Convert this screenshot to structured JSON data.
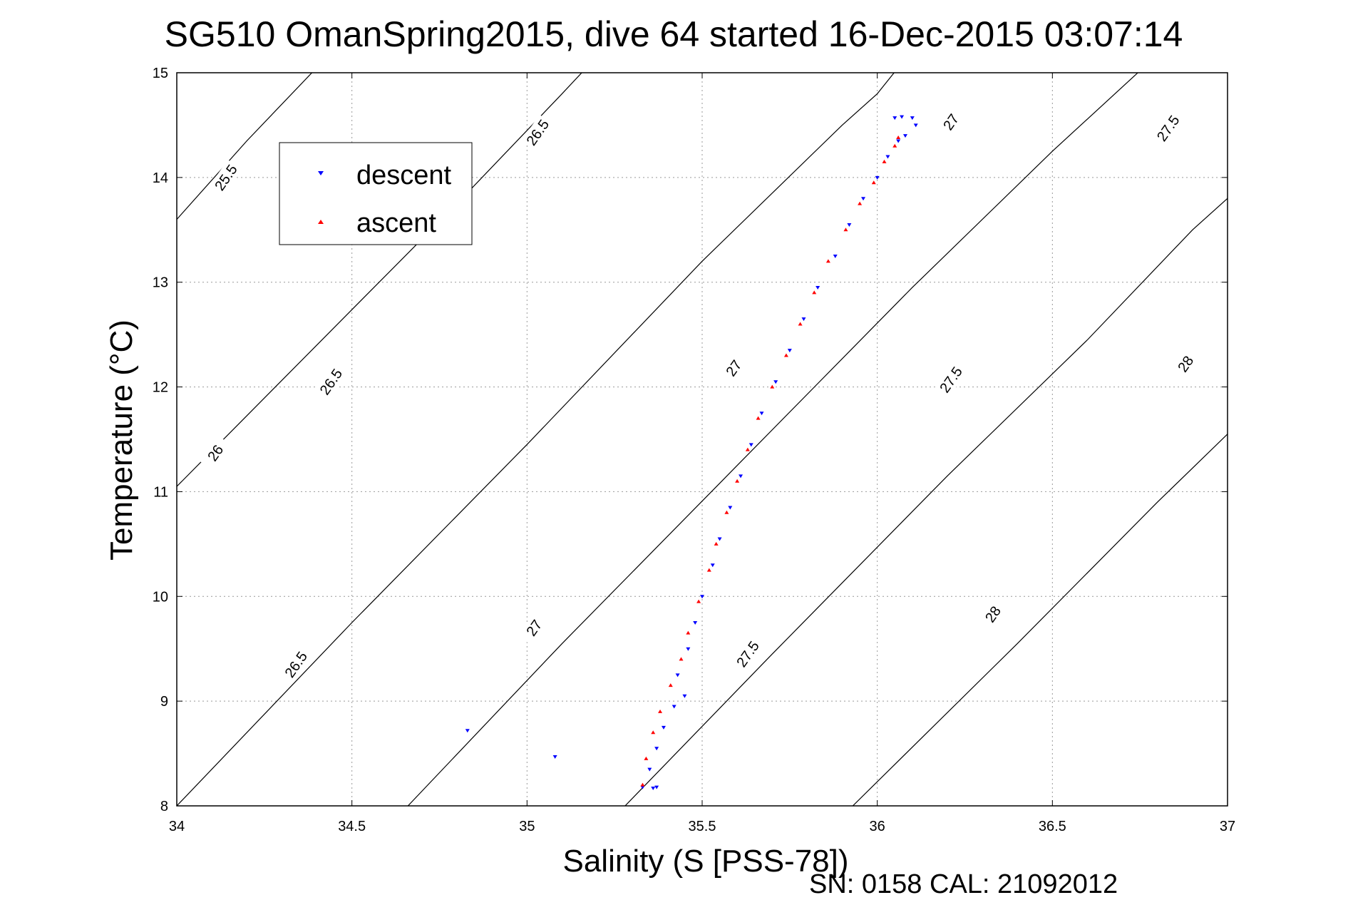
{
  "chart_data": {
    "type": "scatter",
    "title": "SG510 OmanSpring2015, dive 64 started 16-Dec-2015 03:07:14",
    "xlabel": "Salinity (S [PSS-78])",
    "ylabel": "Temperature (°C)",
    "xlim": [
      34,
      37
    ],
    "ylim": [
      8,
      15
    ],
    "xticks": [
      "34",
      "34.5",
      "35",
      "35.5",
      "36",
      "36.5",
      "37"
    ],
    "yticks": [
      "8",
      "9",
      "10",
      "11",
      "12",
      "13",
      "14",
      "15"
    ],
    "grid": true,
    "legend_position": "top-left",
    "footer": "SN: 0158  CAL: 21092012",
    "series": [
      {
        "name": "descent",
        "color": "#0000ff",
        "marker": "triangle-down",
        "points": [
          [
            35.33,
            8.18
          ],
          [
            35.36,
            8.17
          ],
          [
            35.37,
            8.18
          ],
          [
            35.35,
            8.35
          ],
          [
            35.37,
            8.55
          ],
          [
            35.39,
            8.75
          ],
          [
            35.42,
            8.95
          ],
          [
            35.45,
            9.05
          ],
          [
            35.43,
            9.25
          ],
          [
            35.46,
            9.5
          ],
          [
            35.48,
            9.75
          ],
          [
            35.5,
            10.0
          ],
          [
            35.53,
            10.3
          ],
          [
            35.55,
            10.55
          ],
          [
            35.58,
            10.85
          ],
          [
            35.61,
            11.15
          ],
          [
            35.64,
            11.45
          ],
          [
            35.67,
            11.75
          ],
          [
            35.71,
            12.05
          ],
          [
            35.75,
            12.35
          ],
          [
            35.79,
            12.65
          ],
          [
            35.83,
            12.95
          ],
          [
            35.88,
            13.25
          ],
          [
            35.92,
            13.55
          ],
          [
            35.96,
            13.8
          ],
          [
            36.0,
            14.0
          ],
          [
            36.03,
            14.2
          ],
          [
            36.06,
            14.35
          ],
          [
            36.08,
            14.4
          ],
          [
            36.05,
            14.57
          ],
          [
            36.07,
            14.58
          ],
          [
            36.1,
            14.57
          ],
          [
            36.11,
            14.5
          ],
          [
            34.83,
            8.72
          ],
          [
            35.08,
            8.47
          ]
        ]
      },
      {
        "name": "ascent",
        "color": "#ff0000",
        "marker": "triangle-up",
        "points": [
          [
            35.33,
            8.2
          ],
          [
            35.34,
            8.45
          ],
          [
            35.36,
            8.7
          ],
          [
            35.38,
            8.9
          ],
          [
            35.41,
            9.15
          ],
          [
            35.44,
            9.4
          ],
          [
            35.46,
            9.65
          ],
          [
            35.49,
            9.95
          ],
          [
            35.52,
            10.25
          ],
          [
            35.54,
            10.5
          ],
          [
            35.57,
            10.8
          ],
          [
            35.6,
            11.1
          ],
          [
            35.63,
            11.4
          ],
          [
            35.66,
            11.7
          ],
          [
            35.7,
            12.0
          ],
          [
            35.74,
            12.3
          ],
          [
            35.78,
            12.6
          ],
          [
            35.82,
            12.9
          ],
          [
            35.86,
            13.2
          ],
          [
            35.91,
            13.5
          ],
          [
            35.95,
            13.75
          ],
          [
            35.99,
            13.95
          ],
          [
            36.02,
            14.15
          ],
          [
            36.05,
            14.3
          ],
          [
            36.06,
            14.38
          ]
        ]
      }
    ],
    "contours": [
      {
        "label": "25.5",
        "points": [
          [
            34.0,
            13.6
          ],
          [
            34.2,
            14.35
          ],
          [
            34.4,
            15.05
          ]
        ]
      },
      {
        "label": "26",
        "points": [
          [
            34.0,
            11.05
          ],
          [
            34.4,
            12.4
          ],
          [
            34.8,
            13.75
          ],
          [
            35.1,
            14.8
          ],
          [
            35.17,
            15.05
          ]
        ]
      },
      {
        "label": "26.5",
        "points": [
          [
            34.0,
            8.0
          ],
          [
            34.5,
            9.75
          ],
          [
            35.0,
            11.45
          ],
          [
            35.5,
            13.2
          ],
          [
            35.9,
            14.5
          ],
          [
            36.0,
            14.8
          ],
          [
            36.06,
            15.05
          ]
        ]
      },
      {
        "label": "27",
        "points": [
          [
            34.66,
            8.0
          ],
          [
            35.1,
            9.55
          ],
          [
            35.6,
            11.25
          ],
          [
            36.1,
            12.95
          ],
          [
            36.5,
            14.25
          ],
          [
            36.76,
            15.05
          ]
        ]
      },
      {
        "label": "27.5",
        "points": [
          [
            35.28,
            8.0
          ],
          [
            35.7,
            9.45
          ],
          [
            36.2,
            11.15
          ],
          [
            36.6,
            12.45
          ],
          [
            36.9,
            13.5
          ],
          [
            37.0,
            13.8
          ]
        ]
      },
      {
        "label": "28",
        "points": [
          [
            35.93,
            8.0
          ],
          [
            36.4,
            9.55
          ],
          [
            36.8,
            10.9
          ],
          [
            37.0,
            11.55
          ]
        ]
      }
    ],
    "contour_labels": [
      {
        "text": "25.5",
        "x": 34.14,
        "y": 14.0
      },
      {
        "text": "26",
        "x": 34.11,
        "y": 11.37
      },
      {
        "text": "26.5",
        "x": 35.03,
        "y": 14.43
      },
      {
        "text": "26.5",
        "x": 34.44,
        "y": 12.05
      },
      {
        "text": "26.5",
        "x": 34.34,
        "y": 9.35
      },
      {
        "text": "27",
        "x": 36.21,
        "y": 14.53
      },
      {
        "text": "27",
        "x": 35.59,
        "y": 12.18
      },
      {
        "text": "27",
        "x": 35.02,
        "y": 9.7
      },
      {
        "text": "27.5",
        "x": 36.83,
        "y": 14.47
      },
      {
        "text": "27.5",
        "x": 36.21,
        "y": 12.07
      },
      {
        "text": "27.5",
        "x": 35.63,
        "y": 9.45
      },
      {
        "text": "28",
        "x": 36.88,
        "y": 12.22
      },
      {
        "text": "28",
        "x": 36.33,
        "y": 9.83
      }
    ]
  }
}
